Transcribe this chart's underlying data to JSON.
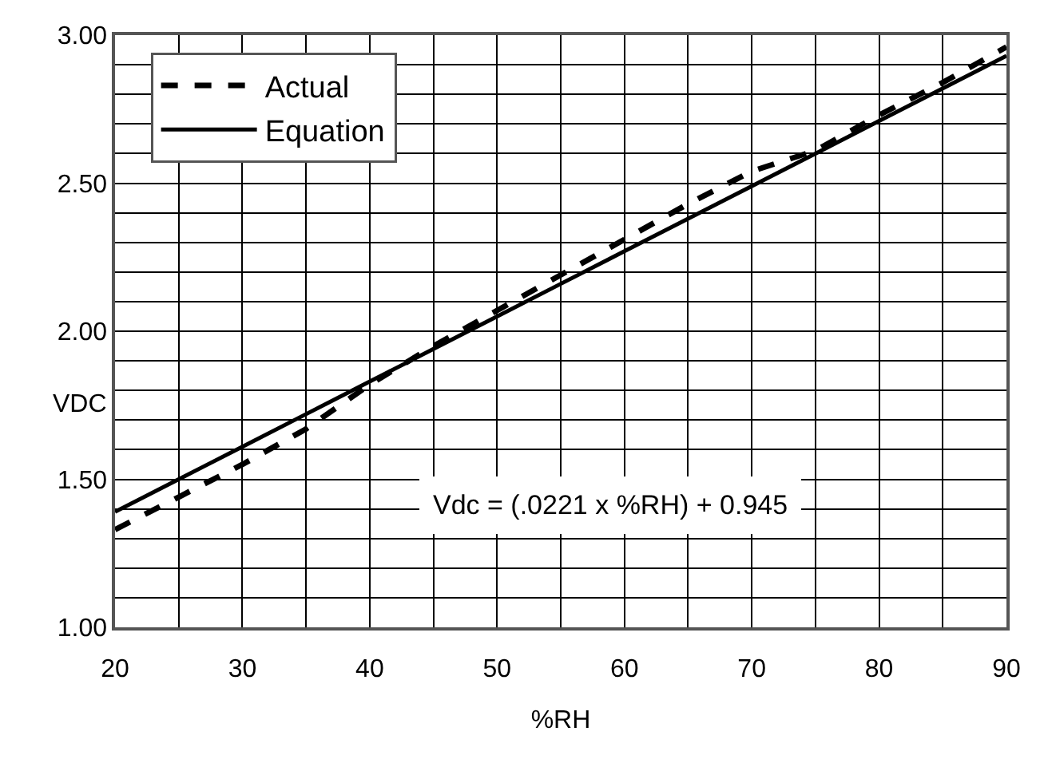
{
  "chart_data": {
    "type": "line",
    "xlabel": "%RH",
    "ylabel": "VDC",
    "annotations": [
      "Vdc = (.0221 x %RH) + 0.945"
    ],
    "x": [
      20,
      25,
      30,
      35,
      40,
      45,
      50,
      55,
      60,
      65,
      70,
      75,
      80,
      85,
      90
    ],
    "series": [
      {
        "name": "Actual",
        "color": "#000000",
        "line_style": "dashed",
        "values": [
          1.33,
          1.44,
          1.55,
          1.67,
          1.82,
          1.95,
          2.07,
          2.19,
          2.31,
          2.43,
          2.54,
          2.61,
          2.73,
          2.84,
          2.96
        ]
      },
      {
        "name": "Equation",
        "color": "#000000",
        "line_style": "solid",
        "values": [
          1.39,
          1.5,
          1.61,
          1.72,
          1.83,
          1.94,
          2.05,
          2.16,
          2.27,
          2.38,
          2.49,
          2.6,
          2.71,
          2.82,
          2.93
        ]
      }
    ],
    "xlim": [
      20,
      90
    ],
    "xticks": [
      20,
      {
        "value": 25,
        "label": null
      },
      30,
      {
        "value": 35,
        "label": null
      },
      40,
      {
        "value": 45,
        "label": null
      },
      50,
      {
        "value": 55,
        "label": null
      },
      60,
      {
        "value": 65,
        "label": null
      },
      70,
      {
        "value": 75,
        "label": null
      },
      80,
      {
        "value": 85,
        "label": null
      },
      90
    ],
    "ylim": [
      1.0,
      3.0
    ],
    "yticks": [
      {
        "value": 1.0,
        "label": "1.00"
      },
      {
        "value": 1.1,
        "label": null
      },
      {
        "value": 1.2,
        "label": null
      },
      {
        "value": 1.3,
        "label": null
      },
      {
        "value": 1.4,
        "label": null
      },
      {
        "value": 1.5,
        "label": "1.50"
      },
      {
        "value": 1.6,
        "label": null
      },
      {
        "value": 1.7,
        "label": null
      },
      {
        "value": 1.8,
        "label": null
      },
      {
        "value": 1.9,
        "label": null
      },
      {
        "value": 2.0,
        "label": "2.00"
      },
      {
        "value": 2.1,
        "label": null
      },
      {
        "value": 2.2,
        "label": null
      },
      {
        "value": 2.3,
        "label": null
      },
      {
        "value": 2.4,
        "label": null
      },
      {
        "value": 2.5,
        "label": "2.50"
      },
      {
        "value": 2.6,
        "label": null
      },
      {
        "value": 2.7,
        "label": null
      },
      {
        "value": 2.8,
        "label": null
      },
      {
        "value": 2.9,
        "label": null
      },
      {
        "value": 3.0,
        "label": "3.00"
      }
    ],
    "grid": true,
    "legend": "top left",
    "marker": "none"
  }
}
